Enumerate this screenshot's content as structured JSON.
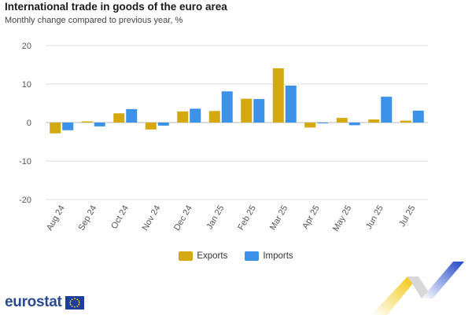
{
  "header": {
    "title": "International trade in goods of the euro area",
    "subtitle": "Monthly change compared to previous year, %"
  },
  "logo": {
    "text": "eurostat"
  },
  "colors": {
    "exports": "#d4a90f",
    "imports": "#3c92e8",
    "grid": "#e2e2e2",
    "axis_text": "#555555"
  },
  "chart_data": {
    "type": "bar",
    "categories": [
      "Aug 24",
      "Sep 24",
      "Oct 24",
      "Nov 24",
      "Dec 24",
      "Jan 25",
      "Feb 25",
      "Mar 25",
      "Apr 25",
      "May 25",
      "Jun 25",
      "Jul 25"
    ],
    "series": [
      {
        "name": "Exports",
        "values": [
          -2.8,
          0.3,
          2.4,
          -1.8,
          2.9,
          3.0,
          6.2,
          14.1,
          -1.3,
          1.2,
          0.8,
          0.5
        ]
      },
      {
        "name": "Imports",
        "values": [
          -2.0,
          -1.0,
          3.5,
          -0.8,
          3.6,
          8.1,
          6.1,
          9.6,
          -0.2,
          -0.7,
          6.7,
          3.1
        ]
      }
    ],
    "title": "International trade in goods of the euro area",
    "subtitle": "Monthly change compared to previous year, %",
    "ylim": [
      -20,
      20
    ],
    "yticks": [
      20,
      10,
      0,
      -10,
      -20
    ],
    "grid": true,
    "legend_position": "bottom-center"
  }
}
